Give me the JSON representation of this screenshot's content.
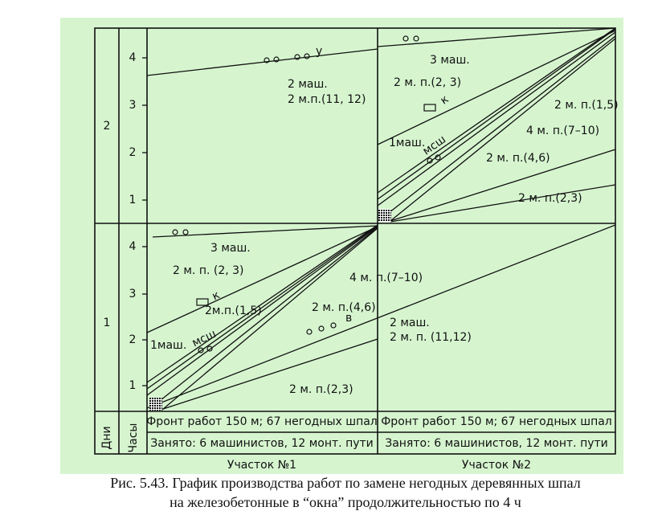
{
  "axis": {
    "days_header": "Дни",
    "hours_header": "Часы",
    "days": [
      "1",
      "2"
    ],
    "hours": [
      "1",
      "2",
      "3",
      "4"
    ]
  },
  "sections": [
    {
      "name": "Участок №1",
      "front": "Фронт работ 150 м; 67 негодных шпал",
      "occupied": "Занято: 6 машинистов, 12 монт. пути",
      "day2_labels": [
        "2 маш.",
        "2 м.п.(11, 12)",
        "у"
      ],
      "day1_labels": [
        "3 маш.",
        "2 м. п. (2, 3)",
        "4 м. п.(7–10)",
        "2м.п.(1,5)",
        "2 м. п.(4,6)",
        "2 маш.",
        "2 м. п. (11,12)",
        "1маш.",
        "мсш",
        "2 м. п.(2,3)",
        "к",
        "в"
      ]
    },
    {
      "name": "Участок №2",
      "front": "Фронт работ 150 м; 67 негодных шпал",
      "occupied": "Занято: 6 машинистов, 12 монт. пути",
      "day2_labels": [
        "3 маш.",
        "2 м. п.(2, 3)",
        "2 м. п.(1,5)",
        "4 м. п.(7–10)",
        "1маш.",
        "мсш",
        "2 м. п.(4,6)",
        "2 м. п.(2,3)",
        "к"
      ]
    }
  ],
  "caption": [
    "Рис. 5.43. График производства работ по замене негодных деревянных шпал",
    "на железобетонные в “окна” продолжительностью по 4 ч"
  ]
}
